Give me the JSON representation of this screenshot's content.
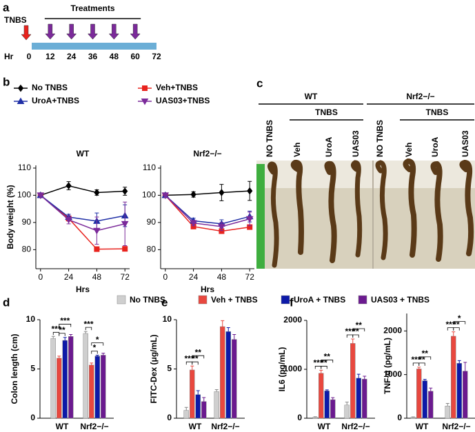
{
  "panel_labels": [
    "a",
    "b",
    "c",
    "d",
    "e",
    "f"
  ],
  "chart_data": [
    {
      "type": "timeline",
      "title": "Treatments",
      "start_label": "TNBS",
      "xlabel": "Hr",
      "xlim": [
        0,
        72
      ],
      "xticks": [
        0,
        12,
        24,
        36,
        48,
        60,
        72
      ],
      "start": 0,
      "treatments": [
        12,
        24,
        36,
        48,
        60
      ],
      "bar_color": "#6baed6",
      "start_color": "#e8231e",
      "treatment_color": "#7b2a9a"
    },
    {
      "type": "line",
      "title": "WT",
      "xlabel": "Hrs",
      "ylabel": "Body weight (%)",
      "x": [
        0,
        24,
        48,
        72
      ],
      "xlim": [
        -4,
        76
      ],
      "xticks": [
        0,
        24,
        48,
        72
      ],
      "ylim": [
        73,
        111
      ],
      "yticks": [
        80,
        90,
        100,
        110
      ],
      "series": [
        {
          "name": "No TNBS",
          "color": "#000000",
          "marker": "diamond",
          "values": [
            100,
            103.5,
            101,
            101.5
          ],
          "errors": [
            0,
            1.5,
            1,
            1.5
          ]
        },
        {
          "name": "Veh+TNBS",
          "color": "#e8231e",
          "marker": "square",
          "values": [
            100,
            91.5,
            80.2,
            80.3
          ],
          "errors": [
            0,
            1,
            0.8,
            0.8
          ]
        },
        {
          "name": "UroA+TNBS",
          "color": "#1f2fa6",
          "marker": "triangle",
          "values": [
            100,
            92,
            90.5,
            92.5
          ],
          "errors": [
            0,
            1,
            3,
            4
          ]
        },
        {
          "name": "UAS03+TNBS",
          "color": "#7b2a9a",
          "marker": "triangle-down",
          "values": [
            100,
            91,
            87,
            89.5
          ],
          "errors": [
            0,
            1.5,
            5,
            8
          ]
        }
      ]
    },
    {
      "type": "line",
      "title": "Nrf2−/−",
      "xlabel": "Hrs",
      "x": [
        0,
        24,
        48,
        72
      ],
      "xlim": [
        -4,
        76
      ],
      "xticks": [
        0,
        24,
        48,
        72
      ],
      "ylim": [
        73,
        111
      ],
      "yticks": [
        80,
        90,
        100,
        110
      ],
      "series": [
        {
          "color": "#000000",
          "marker": "diamond",
          "values": [
            100,
            100.3,
            101,
            101.6
          ],
          "errors": [
            0,
            1,
            3,
            3.5
          ]
        },
        {
          "color": "#e8231e",
          "marker": "square",
          "values": [
            100,
            88.5,
            86.8,
            88.3
          ],
          "errors": [
            0,
            0.5,
            0.8,
            0.8
          ]
        },
        {
          "color": "#1f2fa6",
          "marker": "triangle",
          "values": [
            100,
            90.6,
            89.5,
            92.2
          ],
          "errors": [
            0,
            1,
            1.5,
            2
          ]
        },
        {
          "color": "#7b2a9a",
          "marker": "triangle-down",
          "values": [
            100,
            89.8,
            88.5,
            91.3
          ],
          "errors": [
            0,
            1,
            1.5,
            2.5
          ]
        }
      ]
    },
    {
      "type": "bar",
      "ylabel": "Colon length (cm)",
      "categories": [
        "WT",
        "Nrf2−/−"
      ],
      "ylim": [
        0,
        10
      ],
      "yticks": [
        0,
        5,
        10
      ],
      "series": [
        {
          "name": "No TNBS",
          "color": "#cfcfcf",
          "values": [
            8.1,
            8.6
          ],
          "errors": [
            0.2,
            0.2
          ]
        },
        {
          "name": "Veh + TNBS",
          "color": "#e8483f",
          "values": [
            6.1,
            5.4
          ],
          "errors": [
            0.2,
            0.2
          ]
        },
        {
          "name": "UroA + TNBS",
          "color": "#0d1aa8",
          "values": [
            7.9,
            6.3
          ],
          "errors": [
            0.3,
            0.1
          ]
        },
        {
          "name": "UAS03 + TNBS",
          "color": "#6b1a8f",
          "values": [
            8.3,
            6.4
          ],
          "errors": [
            0.2,
            0.2
          ]
        }
      ],
      "annotations": [
        {
          "text": "***",
          "category": 0,
          "from": 0,
          "to": 1
        },
        {
          "text": "**",
          "category": 0,
          "from": 1,
          "to": 2
        },
        {
          "text": "***",
          "category": 0,
          "from": 1,
          "to": 3
        },
        {
          "text": "***",
          "category": 1,
          "from": 0,
          "to": 1
        },
        {
          "text": "*",
          "category": 1,
          "from": 1,
          "to": 2
        },
        {
          "text": "*",
          "category": 1,
          "from": 1,
          "to": 3
        }
      ]
    },
    {
      "type": "bar",
      "ylabel": "FITC-Dex (μg/mL)",
      "categories": [
        "WT",
        "Nrf2−/−"
      ],
      "ylim": [
        0,
        10
      ],
      "yticks": [
        0,
        5,
        10
      ],
      "series": [
        {
          "color": "#cfcfcf",
          "values": [
            0.8,
            2.7
          ],
          "errors": [
            0.3,
            0.2
          ]
        },
        {
          "color": "#e8483f",
          "values": [
            4.9,
            9.3
          ],
          "errors": [
            0.4,
            0.6
          ]
        },
        {
          "color": "#0d1aa8",
          "values": [
            2.4,
            8.8
          ],
          "errors": [
            0.4,
            0.4
          ]
        },
        {
          "color": "#6b1a8f",
          "values": [
            1.7,
            8.0
          ],
          "errors": [
            0.4,
            0.5
          ]
        }
      ],
      "annotations": [
        {
          "text": "***",
          "category": 0,
          "from": 0,
          "to": 1
        },
        {
          "text": "**",
          "category": 0,
          "from": 1,
          "to": 2
        },
        {
          "text": "**",
          "category": 0,
          "from": 1,
          "to": 3
        }
      ]
    },
    {
      "type": "bar",
      "ylabel": "IL6 (pg/mL)",
      "categories": [
        "WT",
        "Nrf2−/−"
      ],
      "ylim": [
        0,
        2000
      ],
      "yticks": [
        0,
        1000,
        2000
      ],
      "series": [
        {
          "color": "#cfcfcf",
          "values": [
            20,
            270
          ],
          "errors": [
            10,
            60
          ]
        },
        {
          "color": "#e8483f",
          "values": [
            920,
            1530
          ],
          "errors": [
            60,
            90
          ]
        },
        {
          "color": "#0d1aa8",
          "values": [
            560,
            820
          ],
          "errors": [
            20,
            80
          ]
        },
        {
          "color": "#6b1a8f",
          "values": [
            380,
            800
          ],
          "errors": [
            40,
            60
          ]
        }
      ],
      "annotations": [
        {
          "text": "***",
          "category": 0,
          "from": 0,
          "to": 1
        },
        {
          "text": "**",
          "category": 0,
          "from": 1,
          "to": 2
        },
        {
          "text": "**",
          "category": 0,
          "from": 1,
          "to": 3
        },
        {
          "text": "***",
          "category": 1,
          "from": 0,
          "to": 1
        },
        {
          "text": "**",
          "category": 1,
          "from": 1,
          "to": 2
        },
        {
          "text": "**",
          "category": 1,
          "from": 1,
          "to": 3
        }
      ]
    },
    {
      "type": "bar",
      "ylabel": "TNF-α (pg/mL)",
      "categories": [
        "WT",
        "Nrf2−/−"
      ],
      "ylim": [
        0,
        2400
      ],
      "yticks": [
        0,
        1000,
        2000
      ],
      "series": [
        {
          "color": "#cfcfcf",
          "values": [
            20,
            280
          ],
          "errors": [
            10,
            60
          ]
        },
        {
          "color": "#e8483f",
          "values": [
            1130,
            1880
          ],
          "errors": [
            40,
            100
          ]
        },
        {
          "color": "#0d1aa8",
          "values": [
            860,
            1260
          ],
          "errors": [
            30,
            60
          ]
        },
        {
          "color": "#6b1a8f",
          "values": [
            620,
            1080
          ],
          "errors": [
            70,
            200
          ]
        }
      ],
      "annotations": [
        {
          "text": "***",
          "category": 0,
          "from": 0,
          "to": 1
        },
        {
          "text": "**",
          "category": 0,
          "from": 1,
          "to": 2
        },
        {
          "text": "**",
          "category": 0,
          "from": 1,
          "to": 3
        },
        {
          "text": "***",
          "category": 1,
          "from": 0,
          "to": 1
        },
        {
          "text": "**",
          "category": 1,
          "from": 1,
          "to": 2
        },
        {
          "text": "*",
          "category": 1,
          "from": 1,
          "to": 3
        }
      ]
    }
  ],
  "photo": {
    "groups": [
      {
        "label": "WT",
        "treatment": "TNBS",
        "columns": [
          "NO TNBS",
          "Veh",
          "UroA",
          "UAS03"
        ]
      },
      {
        "label": "Nrf2−/−",
        "treatment": "TNBS",
        "columns": [
          "NO TNBS",
          "Veh",
          "UroA",
          "UAS03"
        ]
      }
    ]
  }
}
